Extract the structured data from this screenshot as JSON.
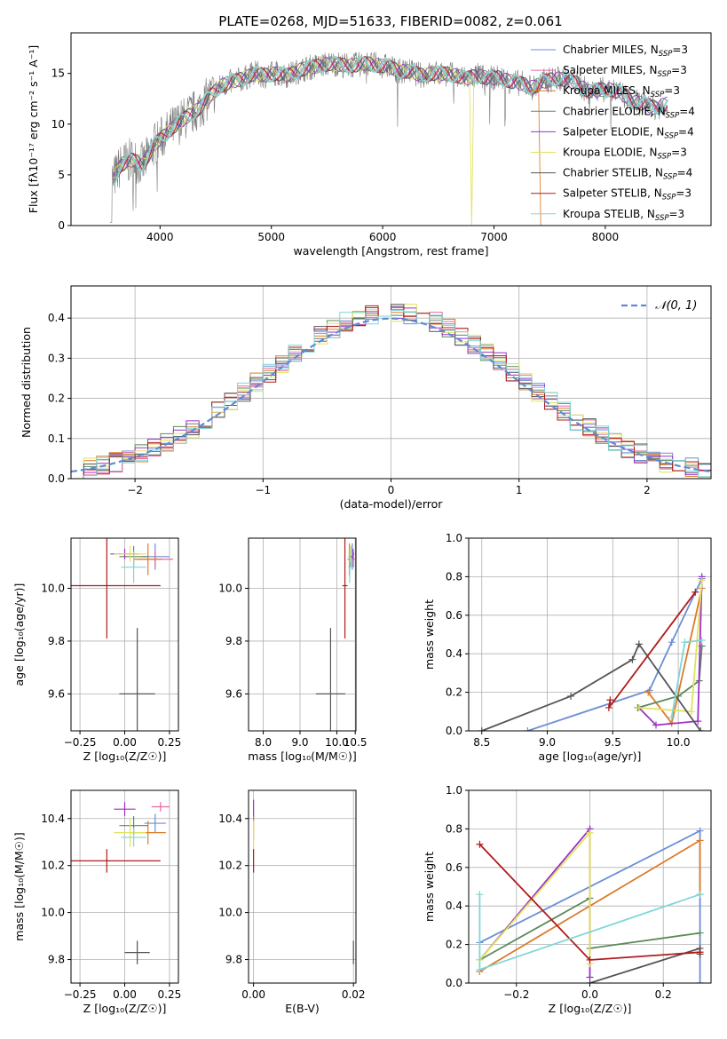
{
  "figure": {
    "title": "PLATE=0268, MJD=51633, FIBERID=0082, z=0.061"
  },
  "colors": {
    "Chabrier MILES": "#6a8fd6",
    "Salpeter MILES": "#e66aa0",
    "Kroupa MILES": "#dd7a2a",
    "Chabrier ELODIE": "#5c8a5a",
    "Salpeter ELODIE": "#9b30c8",
    "Kroupa ELODIE": "#dfe35a",
    "Chabrier STELIB": "#555555",
    "Salpeter STELIB": "#b01c1c",
    "Kroupa STELIB": "#7fd6d6",
    "grid": "#b0b0b0",
    "normal_curve": "#5b8bd8"
  },
  "chart_data": [
    {
      "id": "spectrum",
      "type": "line",
      "title": "PLATE=0268, MJD=51633, FIBERID=0082, z=0.061",
      "xlabel": "wavelength [Angstrom, rest frame]",
      "ylabel": "Flux [fλ10⁻¹⁷ erg cm⁻² s⁻¹ A⁻¹]",
      "xlim": [
        3200,
        8950
      ],
      "ylim": [
        0,
        19
      ],
      "xticks": [
        4000,
        5000,
        6000,
        7000,
        8000
      ],
      "yticks": [
        0,
        5,
        10,
        15
      ],
      "grid": false,
      "legend_position": "right",
      "legend": [
        {
          "label": "Chabrier MILES, N",
          "sub": "SSP",
          "suffix": "=3",
          "color": "#6a8fd6"
        },
        {
          "label": "Salpeter MILES, N",
          "sub": "SSP",
          "suffix": "=3",
          "color": "#e66aa0"
        },
        {
          "label": "Kroupa MILES, N",
          "sub": "SSP",
          "suffix": "=3",
          "color": "#dd7a2a"
        },
        {
          "label": "Chabrier ELODIE, N",
          "sub": "SSP",
          "suffix": "=4",
          "color": "#5c8a5a"
        },
        {
          "label": "Salpeter ELODIE, N",
          "sub": "SSP",
          "suffix": "=4",
          "color": "#9b30c8"
        },
        {
          "label": "Kroupa ELODIE, N",
          "sub": "SSP",
          "suffix": "=3",
          "color": "#dfe35a"
        },
        {
          "label": "Chabrier STELIB, N",
          "sub": "SSP",
          "suffix": "=4",
          "color": "#555555"
        },
        {
          "label": "Salpeter STELIB, N",
          "sub": "SSP",
          "suffix": "=3",
          "color": "#b01c1c"
        },
        {
          "label": "Kroupa STELIB, N",
          "sub": "SSP",
          "suffix": "=3",
          "color": "#7fd6d6"
        }
      ],
      "data_envelope": {
        "wavelength": [
          3550,
          3650,
          3750,
          3850,
          3950,
          4050,
          4150,
          4250,
          4350,
          4450,
          4550,
          4650,
          4750,
          4850,
          4950,
          5050,
          5150,
          5250,
          5350,
          5450,
          5550,
          5650,
          5750,
          5850,
          5950,
          6050,
          6150,
          6250,
          6350,
          6450,
          6550,
          6650,
          6750,
          6850,
          6950,
          7050,
          7150,
          7250,
          7350,
          7450,
          7550,
          7650,
          7750,
          7850,
          7950,
          8050,
          8150,
          8250,
          8350,
          8450,
          8550
        ],
        "flux": [
          4.0,
          6.0,
          6.5,
          6.0,
          8.0,
          9.0,
          10.0,
          10.8,
          11.5,
          12.8,
          13.8,
          14.2,
          14.5,
          15.0,
          14.8,
          15.0,
          14.8,
          15.3,
          15.6,
          15.8,
          16.0,
          15.8,
          15.8,
          16.0,
          15.8,
          15.7,
          15.2,
          15.2,
          14.8,
          15.0,
          15.0,
          14.8,
          14.5,
          14.8,
          14.5,
          14.6,
          14.2,
          14.0,
          13.6,
          14.2,
          14.5,
          14.4,
          14.0,
          13.2,
          13.4,
          13.4,
          13.0,
          12.2,
          12.0,
          11.6,
          12.0
        ]
      }
    },
    {
      "id": "residuals",
      "type": "bar",
      "xlabel": "(data-model)/error",
      "ylabel": "Normed distribution",
      "xlim": [
        -2.5,
        2.5
      ],
      "ylim": [
        0,
        0.48
      ],
      "xticks": [
        -2,
        -1,
        0,
        1,
        2
      ],
      "yticks": [
        0.0,
        0.1,
        0.2,
        0.3,
        0.4
      ],
      "grid": true,
      "legend_position": "top-right",
      "normal_label": "𝒩(0, 1)",
      "bin_width": 0.1,
      "bin_start": -2.5
    },
    {
      "id": "age-vs-Z",
      "type": "scatter",
      "xlabel": "Z [log₁₀(Z/Z☉)]",
      "ylabel": "age  [log₁₀(age/yr)]",
      "xlim": [
        -0.3,
        0.3
      ],
      "ylim": [
        9.46,
        10.19
      ],
      "xticks": [
        -0.25,
        0.0,
        0.25
      ],
      "yticks": [
        9.6,
        9.8,
        10.0
      ],
      "grid": true,
      "points": [
        {
          "model": "Chabrier MILES",
          "x": 0.17,
          "y": 10.12,
          "xerr": 0.08,
          "yerr": 0.05
        },
        {
          "model": "Salpeter MILES",
          "x": 0.17,
          "y": 10.11,
          "xerr": 0.1,
          "yerr": 0.03
        },
        {
          "model": "Kroupa MILES",
          "x": 0.13,
          "y": 10.11,
          "xerr": 0.08,
          "yerr": 0.06
        },
        {
          "model": "Chabrier ELODIE",
          "x": 0.05,
          "y": 10.12,
          "xerr": 0.08,
          "yerr": 0.04
        },
        {
          "model": "Salpeter ELODIE",
          "x": 0.0,
          "y": 10.13,
          "xerr": 0.08,
          "yerr": 0.02
        },
        {
          "model": "Kroupa ELODIE",
          "x": 0.03,
          "y": 10.13,
          "xerr": 0.09,
          "yerr": 0.03
        },
        {
          "model": "Chabrier STELIB",
          "x": 0.07,
          "y": 9.6,
          "xerr": 0.1,
          "yerr": 0.25
        },
        {
          "model": "Salpeter STELIB",
          "x": -0.1,
          "y": 10.01,
          "xerr": 0.3,
          "yerr": 0.2
        },
        {
          "model": "Kroupa STELIB",
          "x": 0.05,
          "y": 10.08,
          "xerr": 0.07,
          "yerr": 0.06
        }
      ]
    },
    {
      "id": "age-vs-mass",
      "type": "scatter",
      "xlabel": "mass [log₁₀(M/M☉)]",
      "ylabel": "",
      "xlim": [
        7.6,
        10.52
      ],
      "ylim": [
        9.46,
        10.19
      ],
      "xticks": [
        8.0,
        9.0,
        10.0
      ],
      "xticklabels": [
        "8.0",
        "9.0",
        "10.0"
      ],
      "xticks_shown": [
        8.0,
        9.0,
        10.0,
        10.5
      ],
      "yticks": [
        9.6,
        9.8,
        10.0
      ],
      "grid": true,
      "points": [
        {
          "model": "Chabrier MILES",
          "x": 10.42,
          "y": 10.12,
          "xerr": 0.04,
          "yerr": 0.05
        },
        {
          "model": "Salpeter MILES",
          "x": 10.45,
          "y": 10.11,
          "xerr": 0.04,
          "yerr": 0.03
        },
        {
          "model": "Kroupa MILES",
          "x": 10.34,
          "y": 10.11,
          "xerr": 0.05,
          "yerr": 0.06
        },
        {
          "model": "Chabrier ELODIE",
          "x": 10.37,
          "y": 10.12,
          "xerr": 0.05,
          "yerr": 0.04
        },
        {
          "model": "Salpeter ELODIE",
          "x": 10.44,
          "y": 10.13,
          "xerr": 0.03,
          "yerr": 0.02
        },
        {
          "model": "Kroupa ELODIE",
          "x": 10.36,
          "y": 10.13,
          "xerr": 0.06,
          "yerr": 0.03
        },
        {
          "model": "Chabrier STELIB",
          "x": 9.83,
          "y": 9.6,
          "xerr": 0.4,
          "yerr": 0.25
        },
        {
          "model": "Salpeter STELIB",
          "x": 10.22,
          "y": 10.01,
          "xerr": 0.07,
          "yerr": 0.2
        },
        {
          "model": "Kroupa STELIB",
          "x": 10.35,
          "y": 10.08,
          "xerr": 0.04,
          "yerr": 0.06
        }
      ]
    },
    {
      "id": "weight-vs-age",
      "type": "line",
      "xlabel": "age  [log₁₀(age/yr)]",
      "ylabel": "mass weight",
      "xlim": [
        8.4,
        10.25
      ],
      "ylim": [
        0,
        1
      ],
      "xticks": [
        8.5,
        9.0,
        9.5,
        10.0
      ],
      "yticks": [
        0.0,
        0.2,
        0.4,
        0.6,
        0.8,
        1.0
      ],
      "grid": true,
      "series": [
        {
          "model": "Chabrier MILES",
          "x": [
            8.85,
            9.78,
            9.95,
            10.18
          ],
          "y": [
            0.0,
            0.21,
            0.46,
            0.79
          ]
        },
        {
          "model": "Kroupa MILES",
          "x": [
            9.77,
            9.95,
            10.18
          ],
          "y": [
            0.2,
            0.04,
            0.74
          ]
        },
        {
          "model": "Chabrier ELODIE",
          "x": [
            9.69,
            10.0,
            10.16,
            10.18
          ],
          "y": [
            0.12,
            0.18,
            0.26,
            0.44
          ]
        },
        {
          "model": "Salpeter ELODIE",
          "x": [
            9.7,
            9.83,
            10.15,
            10.18
          ],
          "y": [
            0.12,
            0.03,
            0.05,
            0.8
          ]
        },
        {
          "model": "Kroupa ELODIE",
          "x": [
            9.7,
            10.1,
            10.18
          ],
          "y": [
            0.12,
            0.1,
            0.78
          ]
        },
        {
          "model": "Chabrier STELIB",
          "x": [
            8.5,
            9.18,
            9.65,
            9.7,
            10.17
          ],
          "y": [
            0.0,
            0.18,
            0.37,
            0.45,
            0.0
          ]
        },
        {
          "model": "Salpeter STELIB",
          "x": [
            9.48,
            9.47,
            10.13
          ],
          "y": [
            0.16,
            0.12,
            0.72
          ]
        },
        {
          "model": "Kroupa STELIB",
          "x": [
            9.95,
            10.05,
            10.18
          ],
          "y": [
            0.07,
            0.46,
            0.47
          ]
        }
      ]
    },
    {
      "id": "mass-vs-Z",
      "type": "scatter",
      "xlabel": "Z [log₁₀(Z/Z☉)]",
      "ylabel": "mass [log₁₀(M/M☉)]",
      "xlim": [
        -0.3,
        0.3
      ],
      "ylim": [
        9.7,
        10.52
      ],
      "xticks": [
        -0.25,
        0.0,
        0.25
      ],
      "yticks": [
        9.8,
        10.0,
        10.2,
        10.4
      ],
      "grid": true,
      "points": [
        {
          "model": "Chabrier MILES",
          "x": 0.17,
          "y": 10.38,
          "xerr": 0.06,
          "yerr": 0.04
        },
        {
          "model": "Salpeter MILES",
          "x": 0.2,
          "y": 10.45,
          "xerr": 0.05,
          "yerr": 0.02
        },
        {
          "model": "Kroupa MILES",
          "x": 0.13,
          "y": 10.34,
          "xerr": 0.1,
          "yerr": 0.05
        },
        {
          "model": "Chabrier ELODIE",
          "x": 0.05,
          "y": 10.37,
          "xerr": 0.08,
          "yerr": 0.04
        },
        {
          "model": "Salpeter ELODIE",
          "x": 0.0,
          "y": 10.44,
          "xerr": 0.06,
          "yerr": 0.03
        },
        {
          "model": "Kroupa ELODIE",
          "x": 0.03,
          "y": 10.34,
          "xerr": 0.09,
          "yerr": 0.06
        },
        {
          "model": "Chabrier STELIB",
          "x": 0.07,
          "y": 9.83,
          "xerr": 0.07,
          "yerr": 0.05
        },
        {
          "model": "Salpeter STELIB",
          "x": -0.1,
          "y": 10.22,
          "xerr": 0.3,
          "yerr": 0.05
        },
        {
          "model": "Kroupa STELIB",
          "x": 0.05,
          "y": 10.32,
          "xerr": 0.07,
          "yerr": 0.04
        }
      ]
    },
    {
      "id": "mass-vs-EBV",
      "type": "scatter",
      "xlabel": "E(B-V)",
      "ylabel": "",
      "xlim": [
        -0.001,
        0.0205
      ],
      "ylim": [
        9.7,
        10.52
      ],
      "xticks": [
        0.0,
        0.02
      ],
      "xticklabels": [
        "0.00",
        "0.02"
      ],
      "yticks": [
        9.8,
        10.0,
        10.2,
        10.4
      ],
      "grid": true,
      "points": [
        {
          "model": "Salpeter ELODIE",
          "x": 0.0,
          "y": 10.44,
          "xerr": 0.0,
          "yerr": 0.04
        },
        {
          "model": "Kroupa MILES",
          "x": 0.0,
          "y": 10.36,
          "xerr": 0.0,
          "yerr": 0.05
        },
        {
          "model": "Kroupa ELODIE",
          "x": 0.0,
          "y": 10.33,
          "xerr": 0.0,
          "yerr": 0.06
        },
        {
          "model": "Salpeter STELIB",
          "x": 0.0,
          "y": 10.22,
          "xerr": 0.0,
          "yerr": 0.05
        },
        {
          "model": "Chabrier STELIB",
          "x": 0.02,
          "y": 9.83,
          "xerr": 0.0,
          "yerr": 0.05
        }
      ]
    },
    {
      "id": "weight-vs-Z",
      "type": "line",
      "xlabel": "Z [log₁₀(Z/Z☉)]",
      "ylabel": "mass weight",
      "xlim": [
        -0.33,
        0.33
      ],
      "ylim": [
        0,
        1
      ],
      "xticks": [
        -0.2,
        0.0,
        0.2
      ],
      "yticks": [
        0.0,
        0.2,
        0.4,
        0.6,
        0.8,
        1.0
      ],
      "grid": true,
      "series": [
        {
          "model": "Chabrier MILES",
          "x": [
            -0.3,
            0.3,
            0.3
          ],
          "y": [
            0.21,
            0.79,
            0.0
          ]
        },
        {
          "model": "Kroupa MILES",
          "x": [
            -0.3,
            0.3,
            0.3
          ],
          "y": [
            0.06,
            0.74,
            0.46
          ]
        },
        {
          "model": "Chabrier ELODIE",
          "x": [
            -0.3,
            0.0,
            0.0,
            0.3
          ],
          "y": [
            0.12,
            0.44,
            0.18,
            0.26
          ]
        },
        {
          "model": "Salpeter ELODIE",
          "x": [
            -0.3,
            0.0,
            0.0
          ],
          "y": [
            0.12,
            0.8,
            0.03
          ]
        },
        {
          "model": "Kroupa ELODIE",
          "x": [
            -0.3,
            0.0,
            0.0
          ],
          "y": [
            0.12,
            0.78,
            0.1
          ]
        },
        {
          "model": "Chabrier STELIB",
          "x": [
            0.0,
            0.3,
            0.3
          ],
          "y": [
            0.0,
            0.18,
            0.15
          ]
        },
        {
          "model": "Salpeter STELIB",
          "x": [
            -0.3,
            0.0,
            0.3
          ],
          "y": [
            0.72,
            0.12,
            0.16
          ]
        },
        {
          "model": "Kroupa STELIB",
          "x": [
            -0.3,
            -0.3,
            0.3
          ],
          "y": [
            0.46,
            0.07,
            0.46
          ]
        }
      ]
    }
  ]
}
